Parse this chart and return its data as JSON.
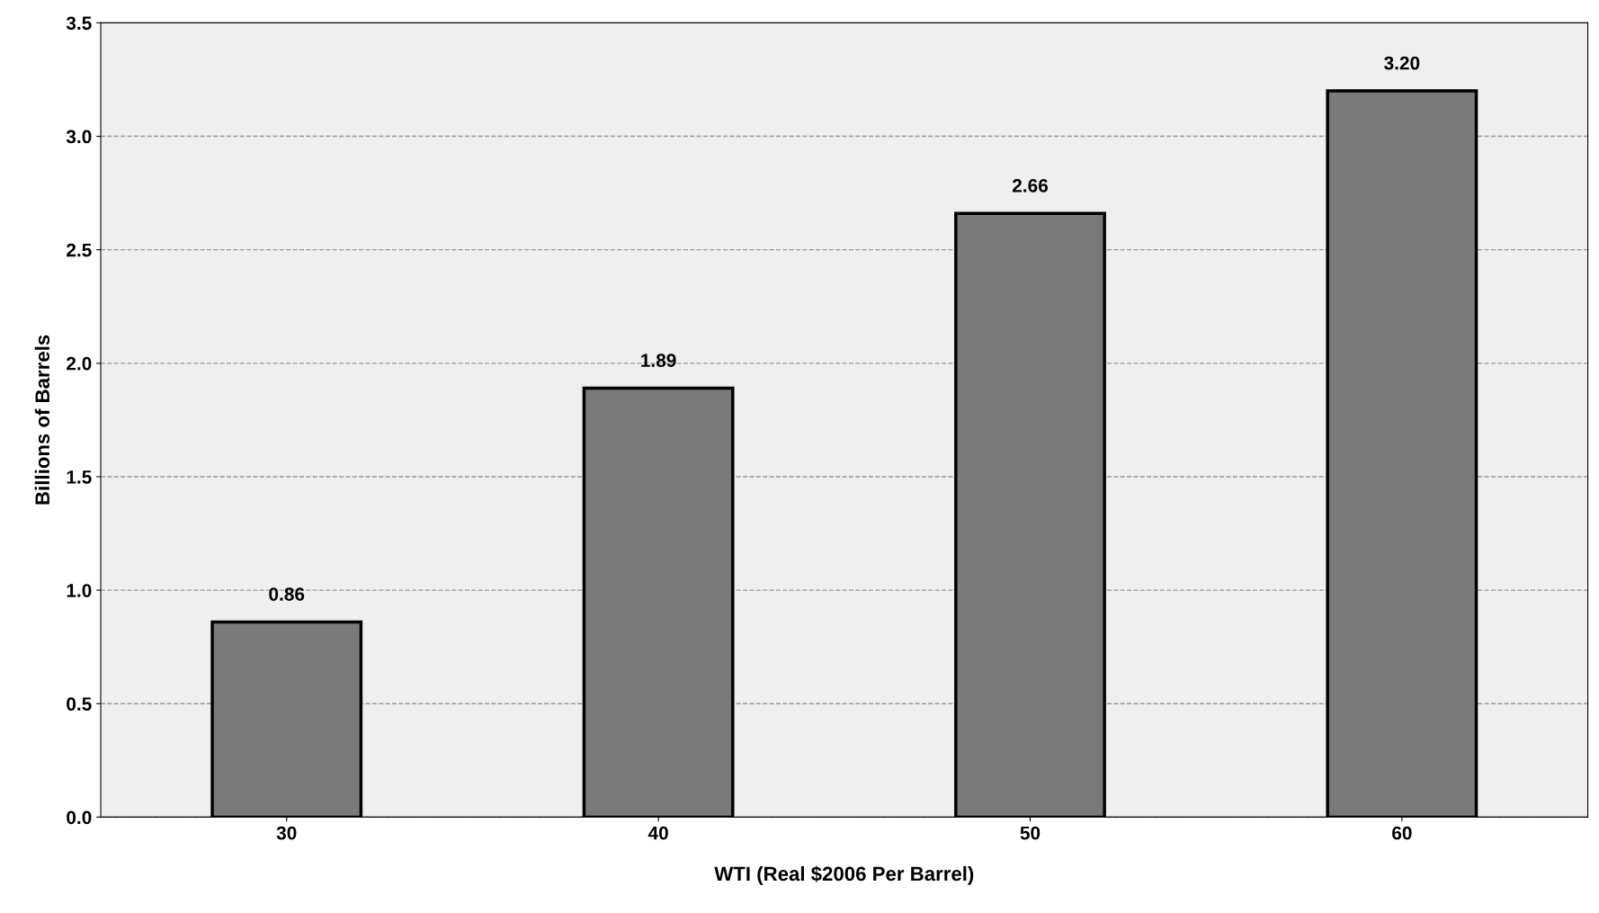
{
  "chart_data": {
    "type": "bar",
    "xlabel": "WTI (Real $2006 Per Barrel)",
    "ylabel": "Billions of Barrels",
    "categories": [
      "30",
      "40",
      "50",
      "60"
    ],
    "values": [
      0.86,
      1.89,
      2.66,
      3.2
    ],
    "value_labels": [
      "0.86",
      "1.89",
      "2.66",
      "3.20"
    ],
    "color": "#7a7a7a",
    "ylim": [
      0,
      3.5
    ],
    "yticks": [
      {
        "value": 0,
        "label": "0.0"
      },
      0.5,
      {
        "value": 1,
        "label": "1.0"
      },
      1.5,
      {
        "value": 2,
        "label": "2.0"
      },
      2.5,
      {
        "value": 3,
        "label": "3.0"
      },
      3.5
    ],
    "grid": "y"
  }
}
